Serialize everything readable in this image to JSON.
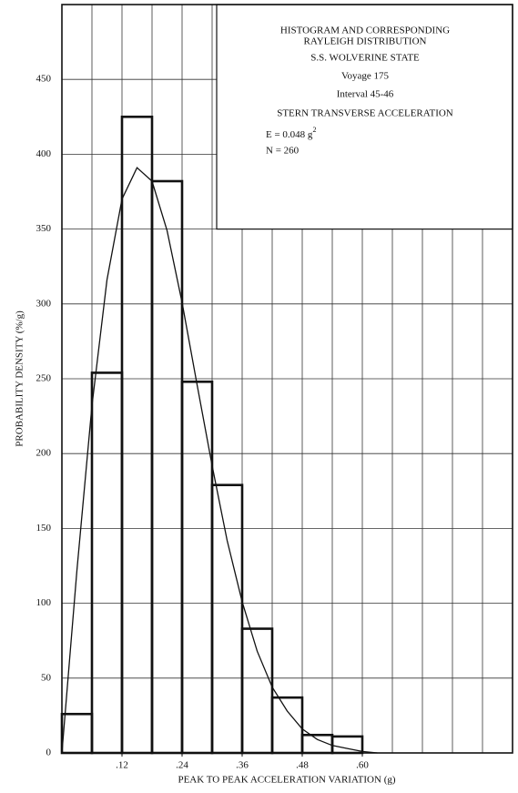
{
  "chart_data": {
    "type": "histogram",
    "annotation_lines": [
      "HISTOGRAM AND CORRESPONDING",
      "RAYLEIGH DISTRIBUTION",
      "S.S. WOLVERINE STATE",
      "Voyage 175",
      "Interval 45-46",
      "STERN TRANSVERSE ACCELERATION"
    ],
    "energy_text": "E = 0.048 g",
    "energy_exponent": "2",
    "count_text": "N = 260",
    "xlabel": "PEAK TO PEAK ACCELERATION VARIATION (g)",
    "ylabel": "PROBABILITY DENSITY (%/g)",
    "bins": [
      0,
      0.06,
      0.12,
      0.18,
      0.24,
      0.3,
      0.36,
      0.42,
      0.48,
      0.54,
      0.6
    ],
    "values": [
      26,
      254,
      425,
      382,
      248,
      179,
      83,
      37,
      12,
      11
    ],
    "curve": {
      "x": [
        0,
        0.03,
        0.06,
        0.09,
        0.12,
        0.15,
        0.18,
        0.21,
        0.24,
        0.27,
        0.3,
        0.33,
        0.36,
        0.39,
        0.42,
        0.45,
        0.48,
        0.51,
        0.54,
        0.57,
        0.6,
        0.63
      ],
      "values": [
        0,
        122,
        232,
        316,
        370,
        391,
        382,
        349,
        301,
        246,
        192,
        142,
        101,
        68,
        44,
        28,
        16,
        9,
        5,
        3,
        1,
        0
      ]
    },
    "xlim": [
      0,
      0.9
    ],
    "ylim": [
      0,
      500
    ],
    "xticks": [
      {
        "value": 0.12,
        "label": ".12"
      },
      {
        "value": 0.24,
        "label": ".24"
      },
      {
        "value": 0.36,
        "label": ".36"
      },
      {
        "value": 0.48,
        "label": ".48"
      },
      {
        "value": 0.6,
        "label": ".60"
      }
    ],
    "xgrid": [
      0.06,
      0.12,
      0.18,
      0.24,
      0.3,
      0.36,
      0.42,
      0.48,
      0.54,
      0.6,
      0.66,
      0.72,
      0.78,
      0.84
    ],
    "yticks": [
      0,
      50,
      100,
      150,
      200,
      250,
      300,
      350,
      400,
      450
    ],
    "grid": true,
    "color": "#111111"
  }
}
